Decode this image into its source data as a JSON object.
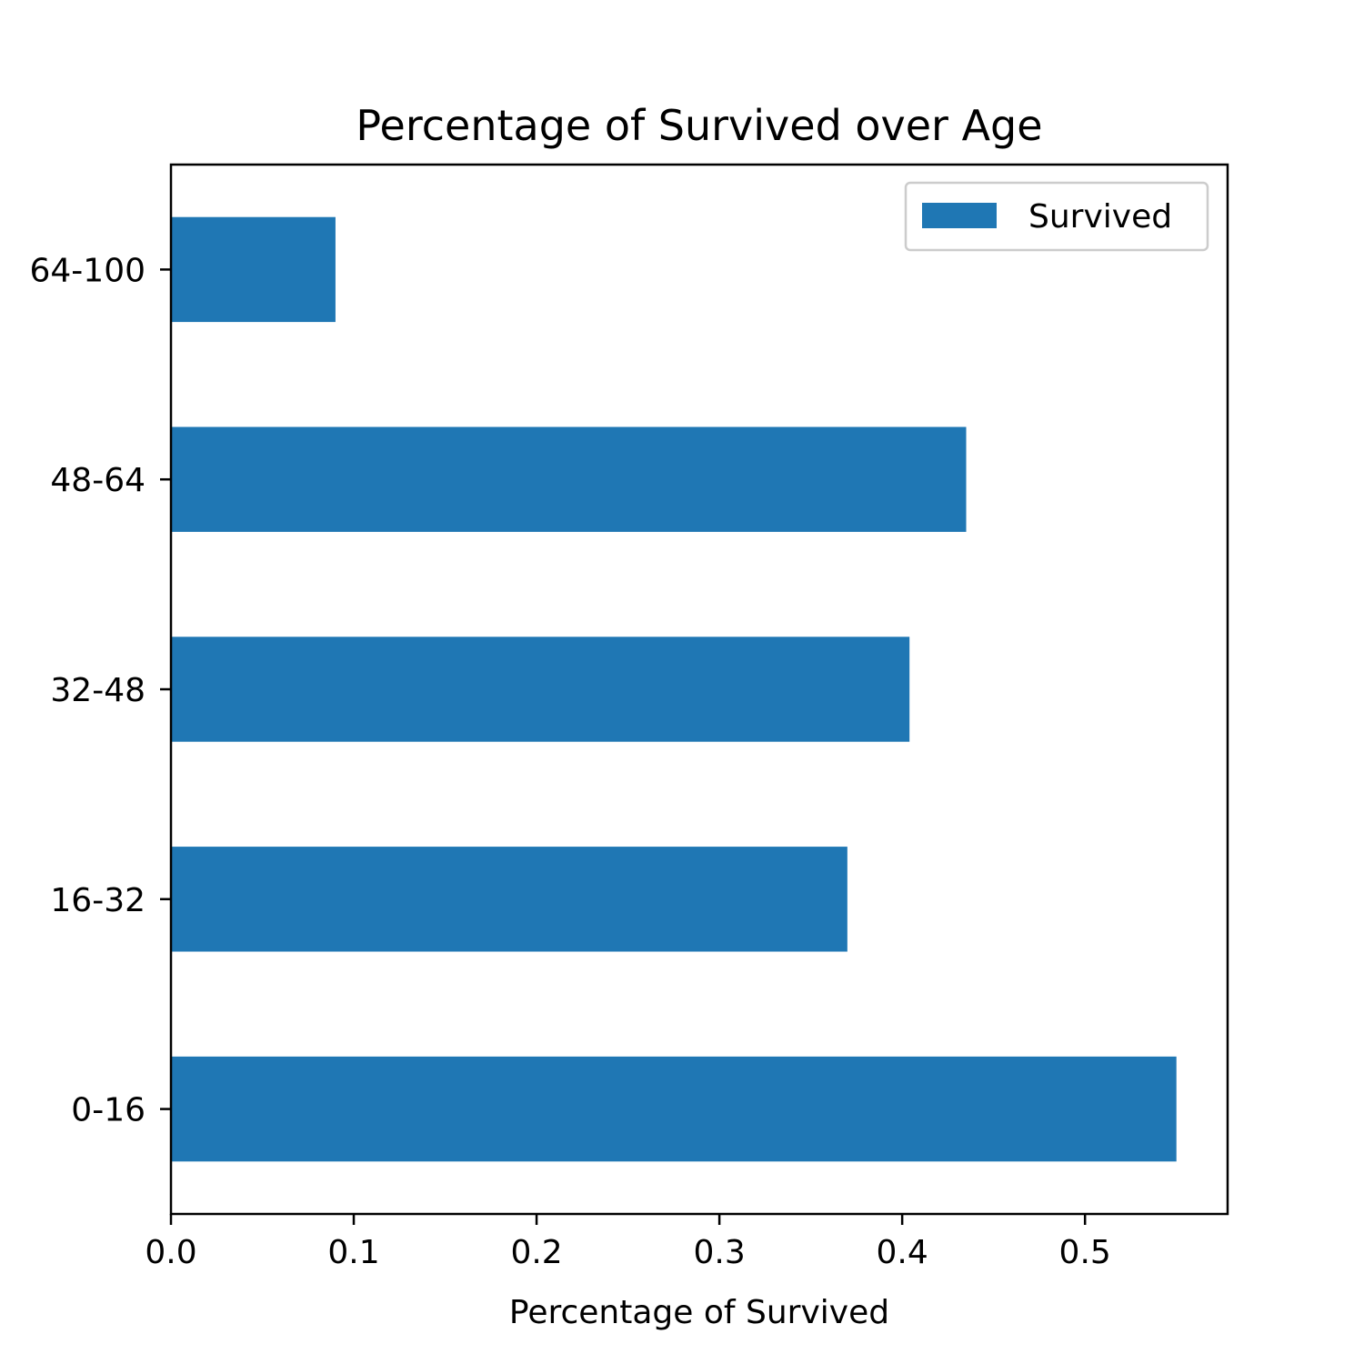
{
  "chart_data": {
    "type": "bar",
    "orientation": "horizontal",
    "title": "Percentage of Survived over Age",
    "xlabel": "Percentage of Survived",
    "ylabel": "",
    "categories": [
      "0-16",
      "16-32",
      "32-48",
      "48-64",
      "64-100"
    ],
    "series": [
      {
        "name": "Survived",
        "values": [
          0.55,
          0.37,
          0.404,
          0.435,
          0.09
        ],
        "color": "#1f77b4"
      }
    ],
    "xlim": [
      0,
      0.578
    ],
    "xticks": [
      "0.0",
      "0.1",
      "0.2",
      "0.3",
      "0.4",
      "0.5"
    ],
    "grid": false,
    "legend_position": "top-right"
  }
}
